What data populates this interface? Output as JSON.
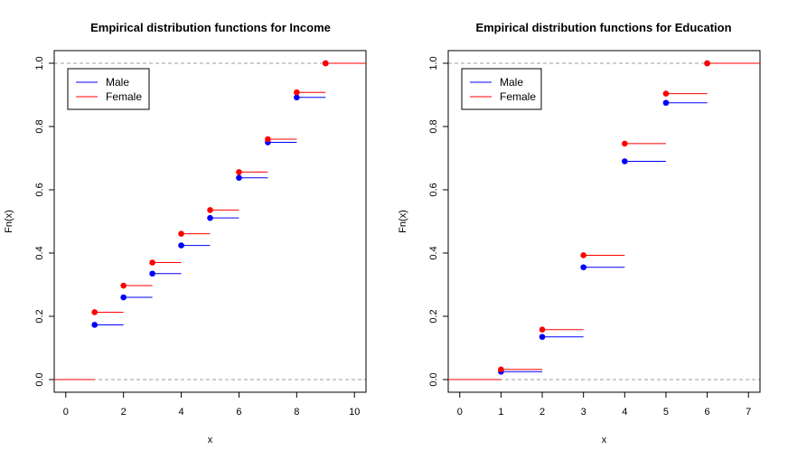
{
  "colors": {
    "male": "#0000ff",
    "female": "#ff0000",
    "ref_line": "#9e9e9e",
    "axis": "#000000"
  },
  "chart_data": [
    {
      "type": "line",
      "subtype": "ecdf-step",
      "title": "Empirical distribution functions for Income",
      "xlabel": "x",
      "ylabel": "Fn(x)",
      "xlim": [
        -0.4,
        10.4
      ],
      "ylim": [
        -0.04,
        1.04
      ],
      "xticks": [
        0,
        2,
        4,
        6,
        8,
        10
      ],
      "yticks": [
        0.0,
        0.2,
        0.4,
        0.6,
        0.8,
        1.0
      ],
      "xtick_labels": [
        "0",
        "2",
        "4",
        "6",
        "8",
        "10"
      ],
      "ytick_labels": [
        "0.0",
        "0.2",
        "0.4",
        "0.6",
        "0.8",
        "1.0"
      ],
      "reference_lines": [
        0,
        1
      ],
      "legend": {
        "position": "top-left",
        "entries": [
          "Male",
          "Female"
        ]
      },
      "series": [
        {
          "name": "Male",
          "color": "#0000ff",
          "x": [
            1,
            2,
            3,
            4,
            5,
            6,
            7,
            8,
            9
          ],
          "y": [
            0.173,
            0.26,
            0.335,
            0.424,
            0.511,
            0.638,
            0.75,
            0.892,
            1.0
          ]
        },
        {
          "name": "Female",
          "color": "#ff0000",
          "x": [
            1,
            2,
            3,
            4,
            5,
            6,
            7,
            8,
            9
          ],
          "y": [
            0.213,
            0.297,
            0.37,
            0.461,
            0.536,
            0.656,
            0.76,
            0.908,
            1.0
          ]
        }
      ]
    },
    {
      "type": "line",
      "subtype": "ecdf-step",
      "title": "Empirical distribution functions for Education",
      "xlabel": "x",
      "ylabel": "Fn(x)",
      "xlim": [
        -0.28,
        7.28
      ],
      "ylim": [
        -0.04,
        1.04
      ],
      "xticks": [
        0,
        1,
        2,
        3,
        4,
        5,
        6,
        7
      ],
      "yticks": [
        0.0,
        0.2,
        0.4,
        0.6,
        0.8,
        1.0
      ],
      "xtick_labels": [
        "0",
        "1",
        "2",
        "3",
        "4",
        "5",
        "6",
        "7"
      ],
      "ytick_labels": [
        "0.0",
        "0.2",
        "0.4",
        "0.6",
        "0.8",
        "1.0"
      ],
      "reference_lines": [
        0,
        1
      ],
      "legend": {
        "position": "top-left",
        "entries": [
          "Male",
          "Female"
        ]
      },
      "series": [
        {
          "name": "Male",
          "color": "#0000ff",
          "x": [
            1,
            2,
            3,
            4,
            5,
            6
          ],
          "y": [
            0.025,
            0.135,
            0.355,
            0.69,
            0.875,
            1.0
          ]
        },
        {
          "name": "Female",
          "color": "#ff0000",
          "x": [
            1,
            2,
            3,
            4,
            5,
            6
          ],
          "y": [
            0.032,
            0.158,
            0.393,
            0.746,
            0.904,
            1.0
          ]
        }
      ]
    }
  ]
}
